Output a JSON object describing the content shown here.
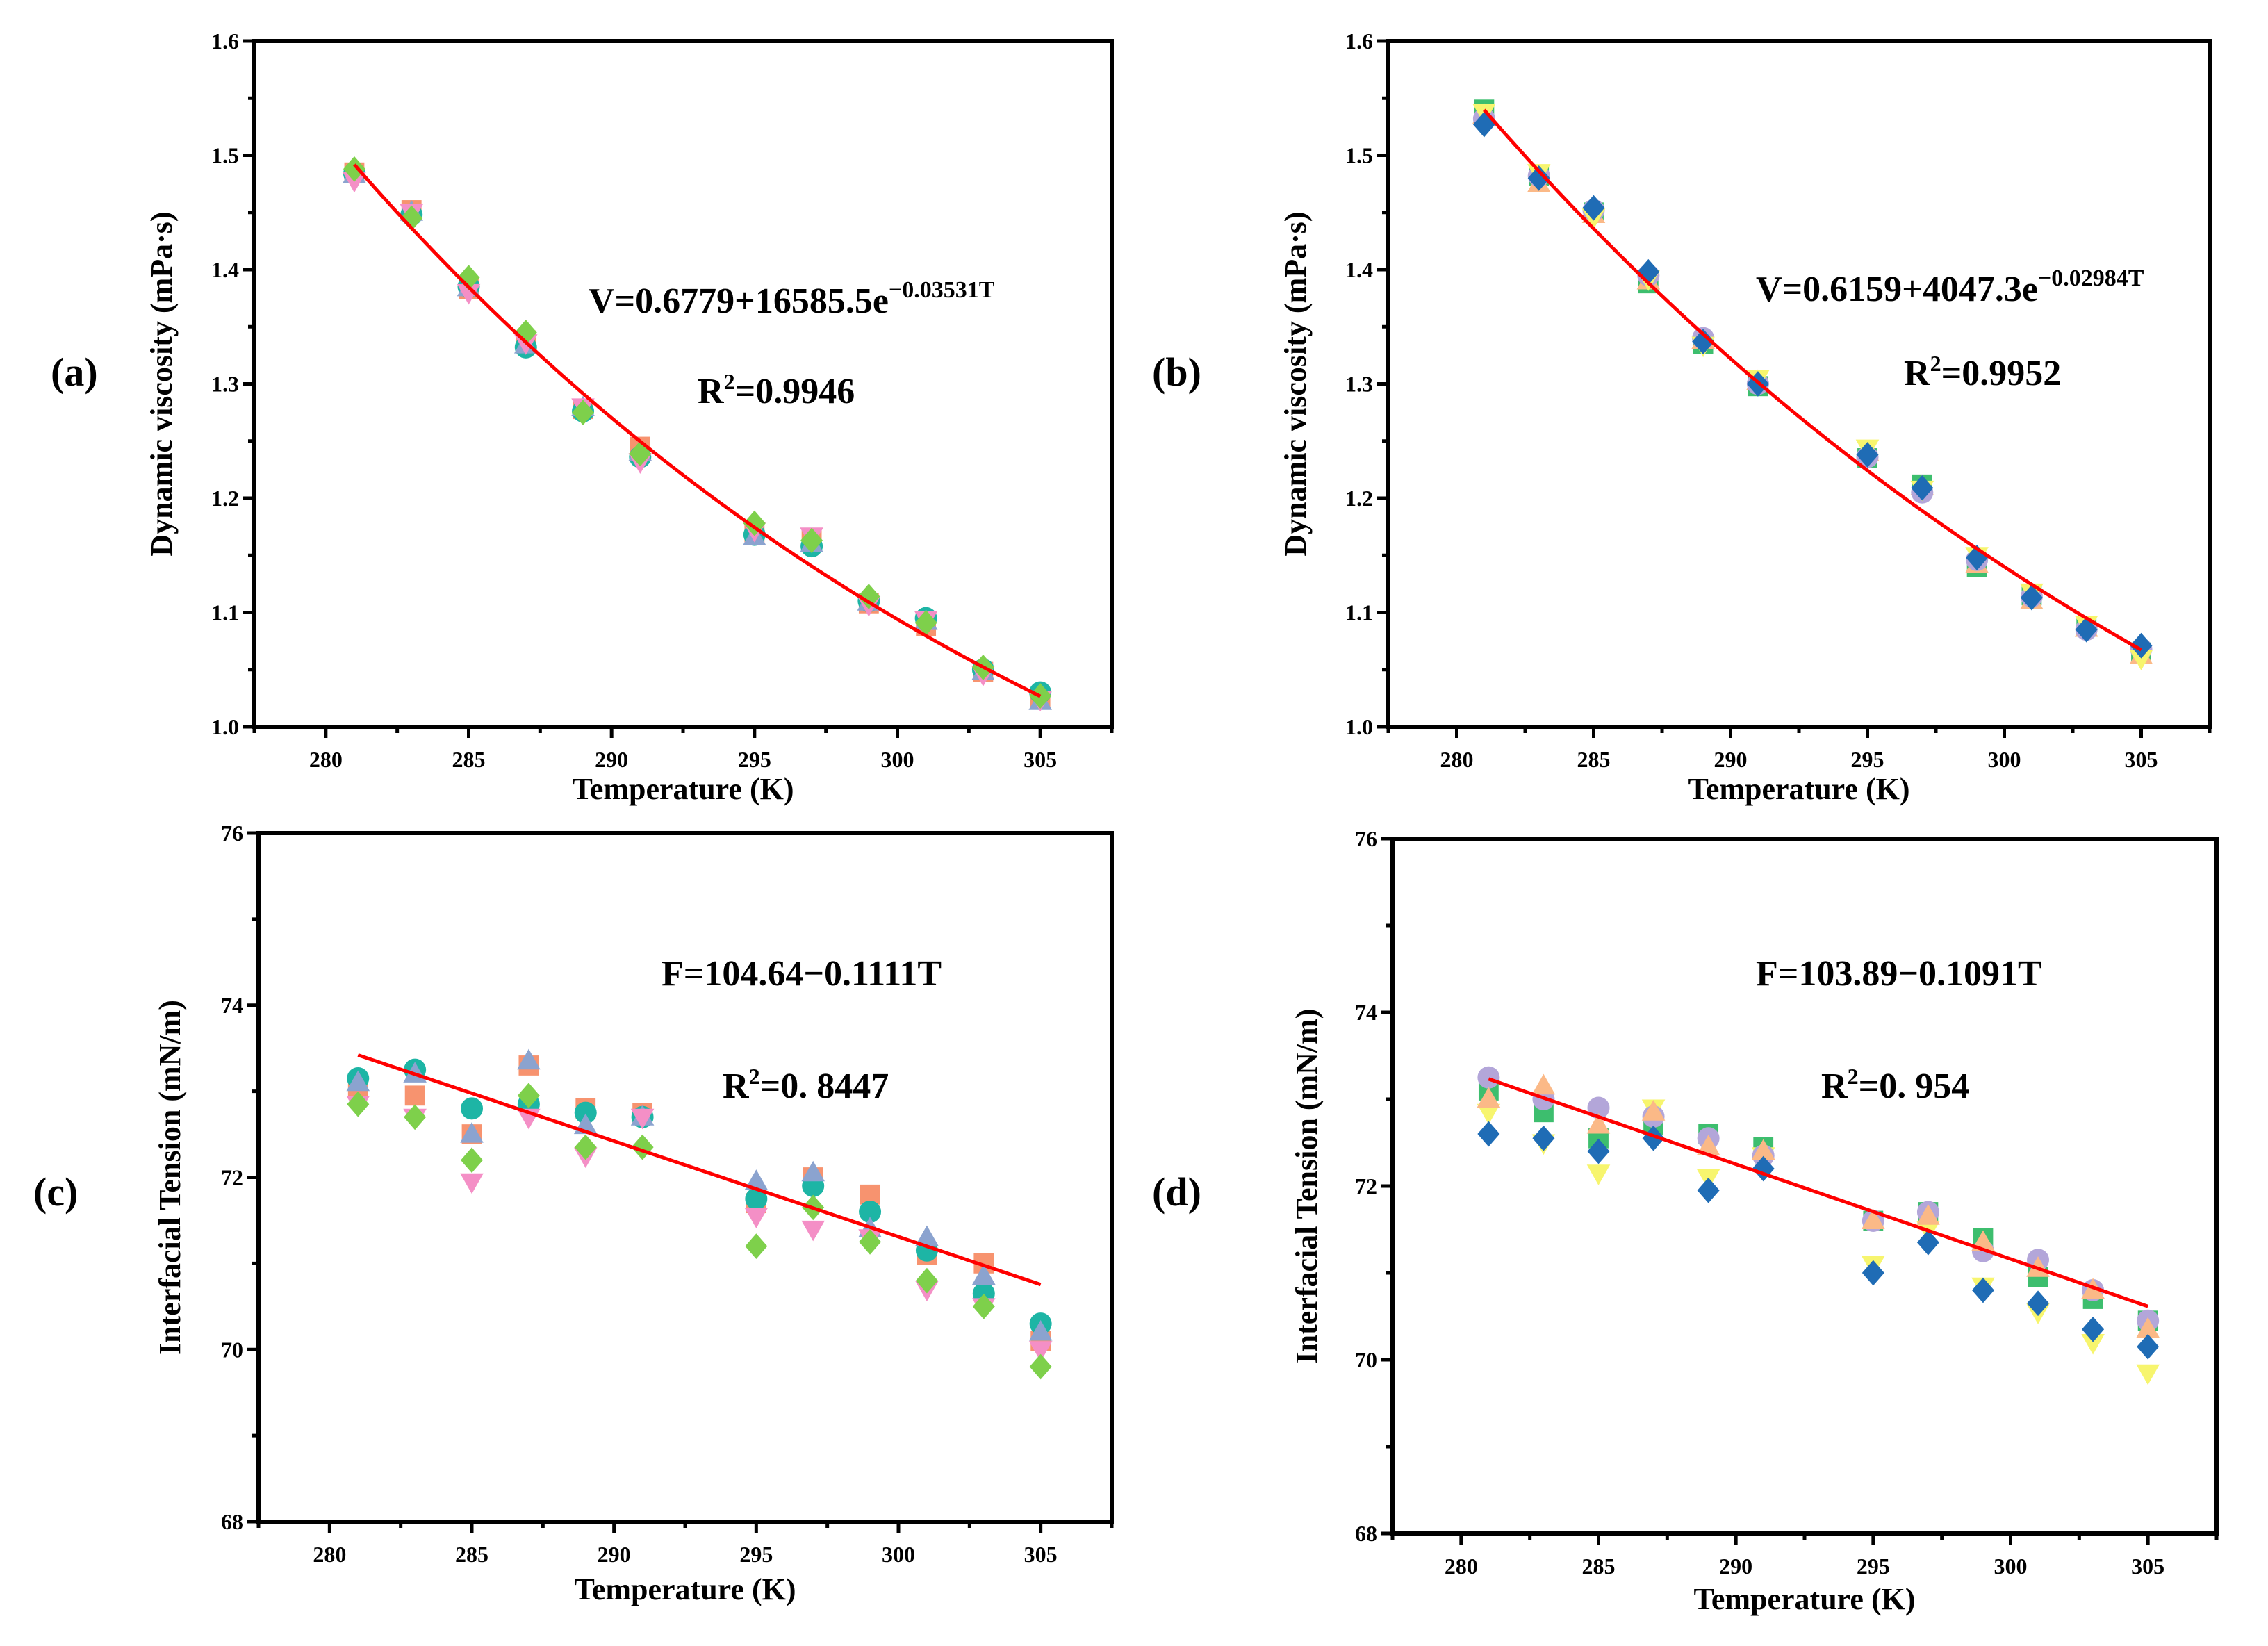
{
  "chart_data": [
    {
      "panel_label": "(a)",
      "type": "scatter",
      "xlabel": "Temperature  (K)",
      "ylabel": "Dynamic viscosity (mPa·s)",
      "xlim": [
        277.5,
        307.5
      ],
      "ylim": [
        1.0,
        1.6
      ],
      "xticks": [
        "280",
        "285",
        "290",
        "295",
        "300",
        "305"
      ],
      "yticks": [
        "1.0",
        "1.1",
        "1.2",
        "1.3",
        "1.4",
        "1.5",
        "1.6"
      ],
      "grid": false,
      "x": [
        281,
        283,
        285,
        287,
        289,
        291,
        295,
        297,
        299,
        301,
        303,
        305
      ],
      "series": [
        {
          "marker": "square",
          "color": "#F7936F",
          "values": [
            1.485,
            1.452,
            1.383,
            1.338,
            1.278,
            1.245,
            1.17,
            1.165,
            1.108,
            1.088,
            1.048,
            1.025
          ]
        },
        {
          "marker": "circle",
          "color": "#1DB5A5",
          "values": [
            1.484,
            1.448,
            1.385,
            1.332,
            1.276,
            1.236,
            1.168,
            1.158,
            1.11,
            1.095,
            1.05,
            1.03
          ]
        },
        {
          "marker": "triangle-up",
          "color": "#8BA3CF",
          "values": [
            1.483,
            1.45,
            1.384,
            1.334,
            1.279,
            1.24,
            1.166,
            1.16,
            1.109,
            1.092,
            1.048,
            1.022
          ]
        },
        {
          "marker": "triangle-down",
          "color": "#F48FC6",
          "values": [
            1.478,
            1.45,
            1.38,
            1.336,
            1.28,
            1.232,
            1.172,
            1.167,
            1.107,
            1.094,
            1.046,
            1.024
          ]
        },
        {
          "marker": "diamond",
          "color": "#7ED04B",
          "values": [
            1.488,
            1.445,
            1.393,
            1.345,
            1.275,
            1.239,
            1.178,
            1.163,
            1.114,
            1.091,
            1.052,
            1.027
          ]
        }
      ],
      "fit": {
        "kind": "exp",
        "a": 0.6779,
        "b": 16585.5,
        "k": -0.03531,
        "range": [
          281,
          305
        ],
        "color": "#FF0000"
      },
      "equation": {
        "main": "V=0.6779+16585.5e",
        "exponent": "−0.03531T"
      },
      "r2": {
        "r": "R",
        "sup": "2",
        "value": "=0.9946"
      }
    },
    {
      "panel_label": "(b)",
      "type": "scatter",
      "xlabel": "Temperature  (K)",
      "ylabel": "Dynamic viscosity (mPa·s)",
      "xlim": [
        277.5,
        307.5
      ],
      "ylim": [
        1.0,
        1.6
      ],
      "xticks": [
        "280",
        "285",
        "290",
        "295",
        "300",
        "305"
      ],
      "yticks": [
        "1.0",
        "1.1",
        "1.2",
        "1.3",
        "1.4",
        "1.5",
        "1.6"
      ],
      "grid": false,
      "x": [
        281,
        283,
        285,
        287,
        289,
        291,
        295,
        297,
        299,
        301,
        303,
        305
      ],
      "series": [
        {
          "marker": "square",
          "color": "#3DBE6E",
          "values": [
            1.54,
            1.482,
            1.45,
            1.388,
            1.335,
            1.298,
            1.235,
            1.212,
            1.14,
            1.115,
            1.088,
            1.065
          ]
        },
        {
          "marker": "triangle-up",
          "color": "#FBB987",
          "values": [
            1.535,
            1.475,
            1.448,
            1.39,
            1.338,
            1.302,
            1.24,
            1.21,
            1.142,
            1.11,
            1.086,
            1.062
          ]
        },
        {
          "marker": "circle",
          "color": "#B3A6D9",
          "values": [
            1.532,
            1.482,
            1.452,
            1.395,
            1.34,
            1.3,
            1.236,
            1.205,
            1.146,
            1.114,
            1.085,
            1.068
          ]
        },
        {
          "marker": "triangle-down",
          "color": "#F7F56E",
          "values": [
            1.538,
            1.485,
            1.446,
            1.392,
            1.334,
            1.305,
            1.244,
            1.208,
            1.15,
            1.118,
            1.09,
            1.06
          ]
        },
        {
          "marker": "diamond",
          "color": "#1F6CB5",
          "values": [
            1.527,
            1.48,
            1.454,
            1.398,
            1.337,
            1.3,
            1.238,
            1.209,
            1.148,
            1.113,
            1.085,
            1.071
          ]
        }
      ],
      "fit": {
        "kind": "exp",
        "a": 0.6159,
        "b": 4047.3,
        "k": -0.02984,
        "range": [
          281,
          305
        ],
        "color": "#FF0000"
      },
      "equation": {
        "main": "V=0.6159+4047.3e",
        "exponent": "−0.02984T"
      },
      "r2": {
        "r": "R",
        "sup": "2",
        "value": "=0.9952"
      }
    },
    {
      "panel_label": "(c)",
      "type": "scatter",
      "xlabel": "Temperature (K)",
      "ylabel": "Interfacial Tension (mN/m)",
      "xlim": [
        277.5,
        307.5
      ],
      "ylim": [
        68,
        76
      ],
      "xticks": [
        "280",
        "285",
        "290",
        "295",
        "300",
        "305"
      ],
      "yticks": [
        "68",
        "70",
        "72",
        "74",
        "76"
      ],
      "grid": false,
      "x": [
        281,
        283,
        285,
        287,
        289,
        291,
        295,
        297,
        299,
        301,
        303,
        305
      ],
      "series": [
        {
          "marker": "square",
          "color": "#F7936F",
          "values": [
            73.05,
            72.95,
            72.5,
            73.3,
            72.8,
            72.75,
            71.7,
            72.0,
            71.8,
            71.1,
            71.0,
            70.1
          ]
        },
        {
          "marker": "circle",
          "color": "#1DB5A5",
          "values": [
            73.15,
            73.25,
            72.8,
            72.85,
            72.75,
            72.7,
            71.75,
            71.9,
            71.6,
            71.15,
            70.65,
            70.3
          ]
        },
        {
          "marker": "triangle-up",
          "color": "#8BA3CF",
          "values": [
            73.1,
            73.2,
            72.5,
            73.35,
            72.6,
            72.7,
            71.95,
            72.05,
            71.4,
            71.3,
            70.85,
            70.2
          ]
        },
        {
          "marker": "triangle-down",
          "color": "#F48FC6",
          "values": [
            72.85,
            72.7,
            71.95,
            72.7,
            72.25,
            72.7,
            71.55,
            71.4,
            71.3,
            70.7,
            70.5,
            70.0
          ]
        },
        {
          "marker": "diamond",
          "color": "#7ED04B",
          "values": [
            72.85,
            72.7,
            72.2,
            72.95,
            72.35,
            72.35,
            71.2,
            71.65,
            71.25,
            70.8,
            70.5,
            69.8
          ]
        }
      ],
      "fit": {
        "kind": "linear",
        "a": 104.64,
        "m": -0.1111,
        "range": [
          281,
          305
        ],
        "color": "#FF0000"
      },
      "equation": {
        "main": "F=104.64−0.1111T",
        "exponent": ""
      },
      "r2": {
        "r": "R",
        "sup": "2",
        "value": "=0. 8447"
      }
    },
    {
      "panel_label": "(d)",
      "type": "scatter",
      "xlabel": "Temperature (K)",
      "ylabel": "Interfacial Tension (mN/m)",
      "xlim": [
        277.5,
        307.5
      ],
      "ylim": [
        68,
        76
      ],
      "xticks": [
        "280",
        "285",
        "290",
        "295",
        "300",
        "305"
      ],
      "yticks": [
        "68",
        "70",
        "72",
        "74",
        "76"
      ],
      "grid": false,
      "x": [
        281,
        283,
        285,
        287,
        289,
        291,
        295,
        297,
        299,
        301,
        303,
        305
      ],
      "series": [
        {
          "marker": "square",
          "color": "#3DBE6E",
          "values": [
            73.1,
            72.85,
            72.55,
            72.7,
            72.6,
            72.45,
            71.6,
            71.7,
            71.4,
            70.95,
            70.7,
            70.45
          ]
        },
        {
          "marker": "triangle-down",
          "color": "#F7F56E",
          "values": [
            72.85,
            72.5,
            72.15,
            72.9,
            72.1,
            72.35,
            71.1,
            71.5,
            70.85,
            70.55,
            70.2,
            69.85
          ]
        },
        {
          "marker": "circle",
          "color": "#B3A6D9",
          "values": [
            73.25,
            73.0,
            72.9,
            72.8,
            72.55,
            72.35,
            71.6,
            71.7,
            71.25,
            71.15,
            70.8,
            70.45
          ]
        },
        {
          "marker": "triangle-up",
          "color": "#FBB987",
          "values": [
            73.0,
            73.15,
            72.7,
            72.85,
            72.45,
            72.4,
            71.6,
            71.65,
            71.35,
            71.05,
            70.8,
            70.35
          ]
        },
        {
          "marker": "diamond",
          "color": "#1F6CB5",
          "values": [
            72.6,
            72.55,
            72.4,
            72.55,
            71.95,
            72.2,
            71.0,
            71.35,
            70.8,
            70.65,
            70.35,
            70.15
          ]
        }
      ],
      "fit": {
        "kind": "linear",
        "a": 103.89,
        "m": -0.1091,
        "range": [
          281,
          305
        ],
        "color": "#FF0000"
      },
      "equation": {
        "main": "F=103.89−0.1091T",
        "exponent": ""
      },
      "r2": {
        "r": "R",
        "sup": "2",
        "value": "=0. 954"
      }
    }
  ]
}
